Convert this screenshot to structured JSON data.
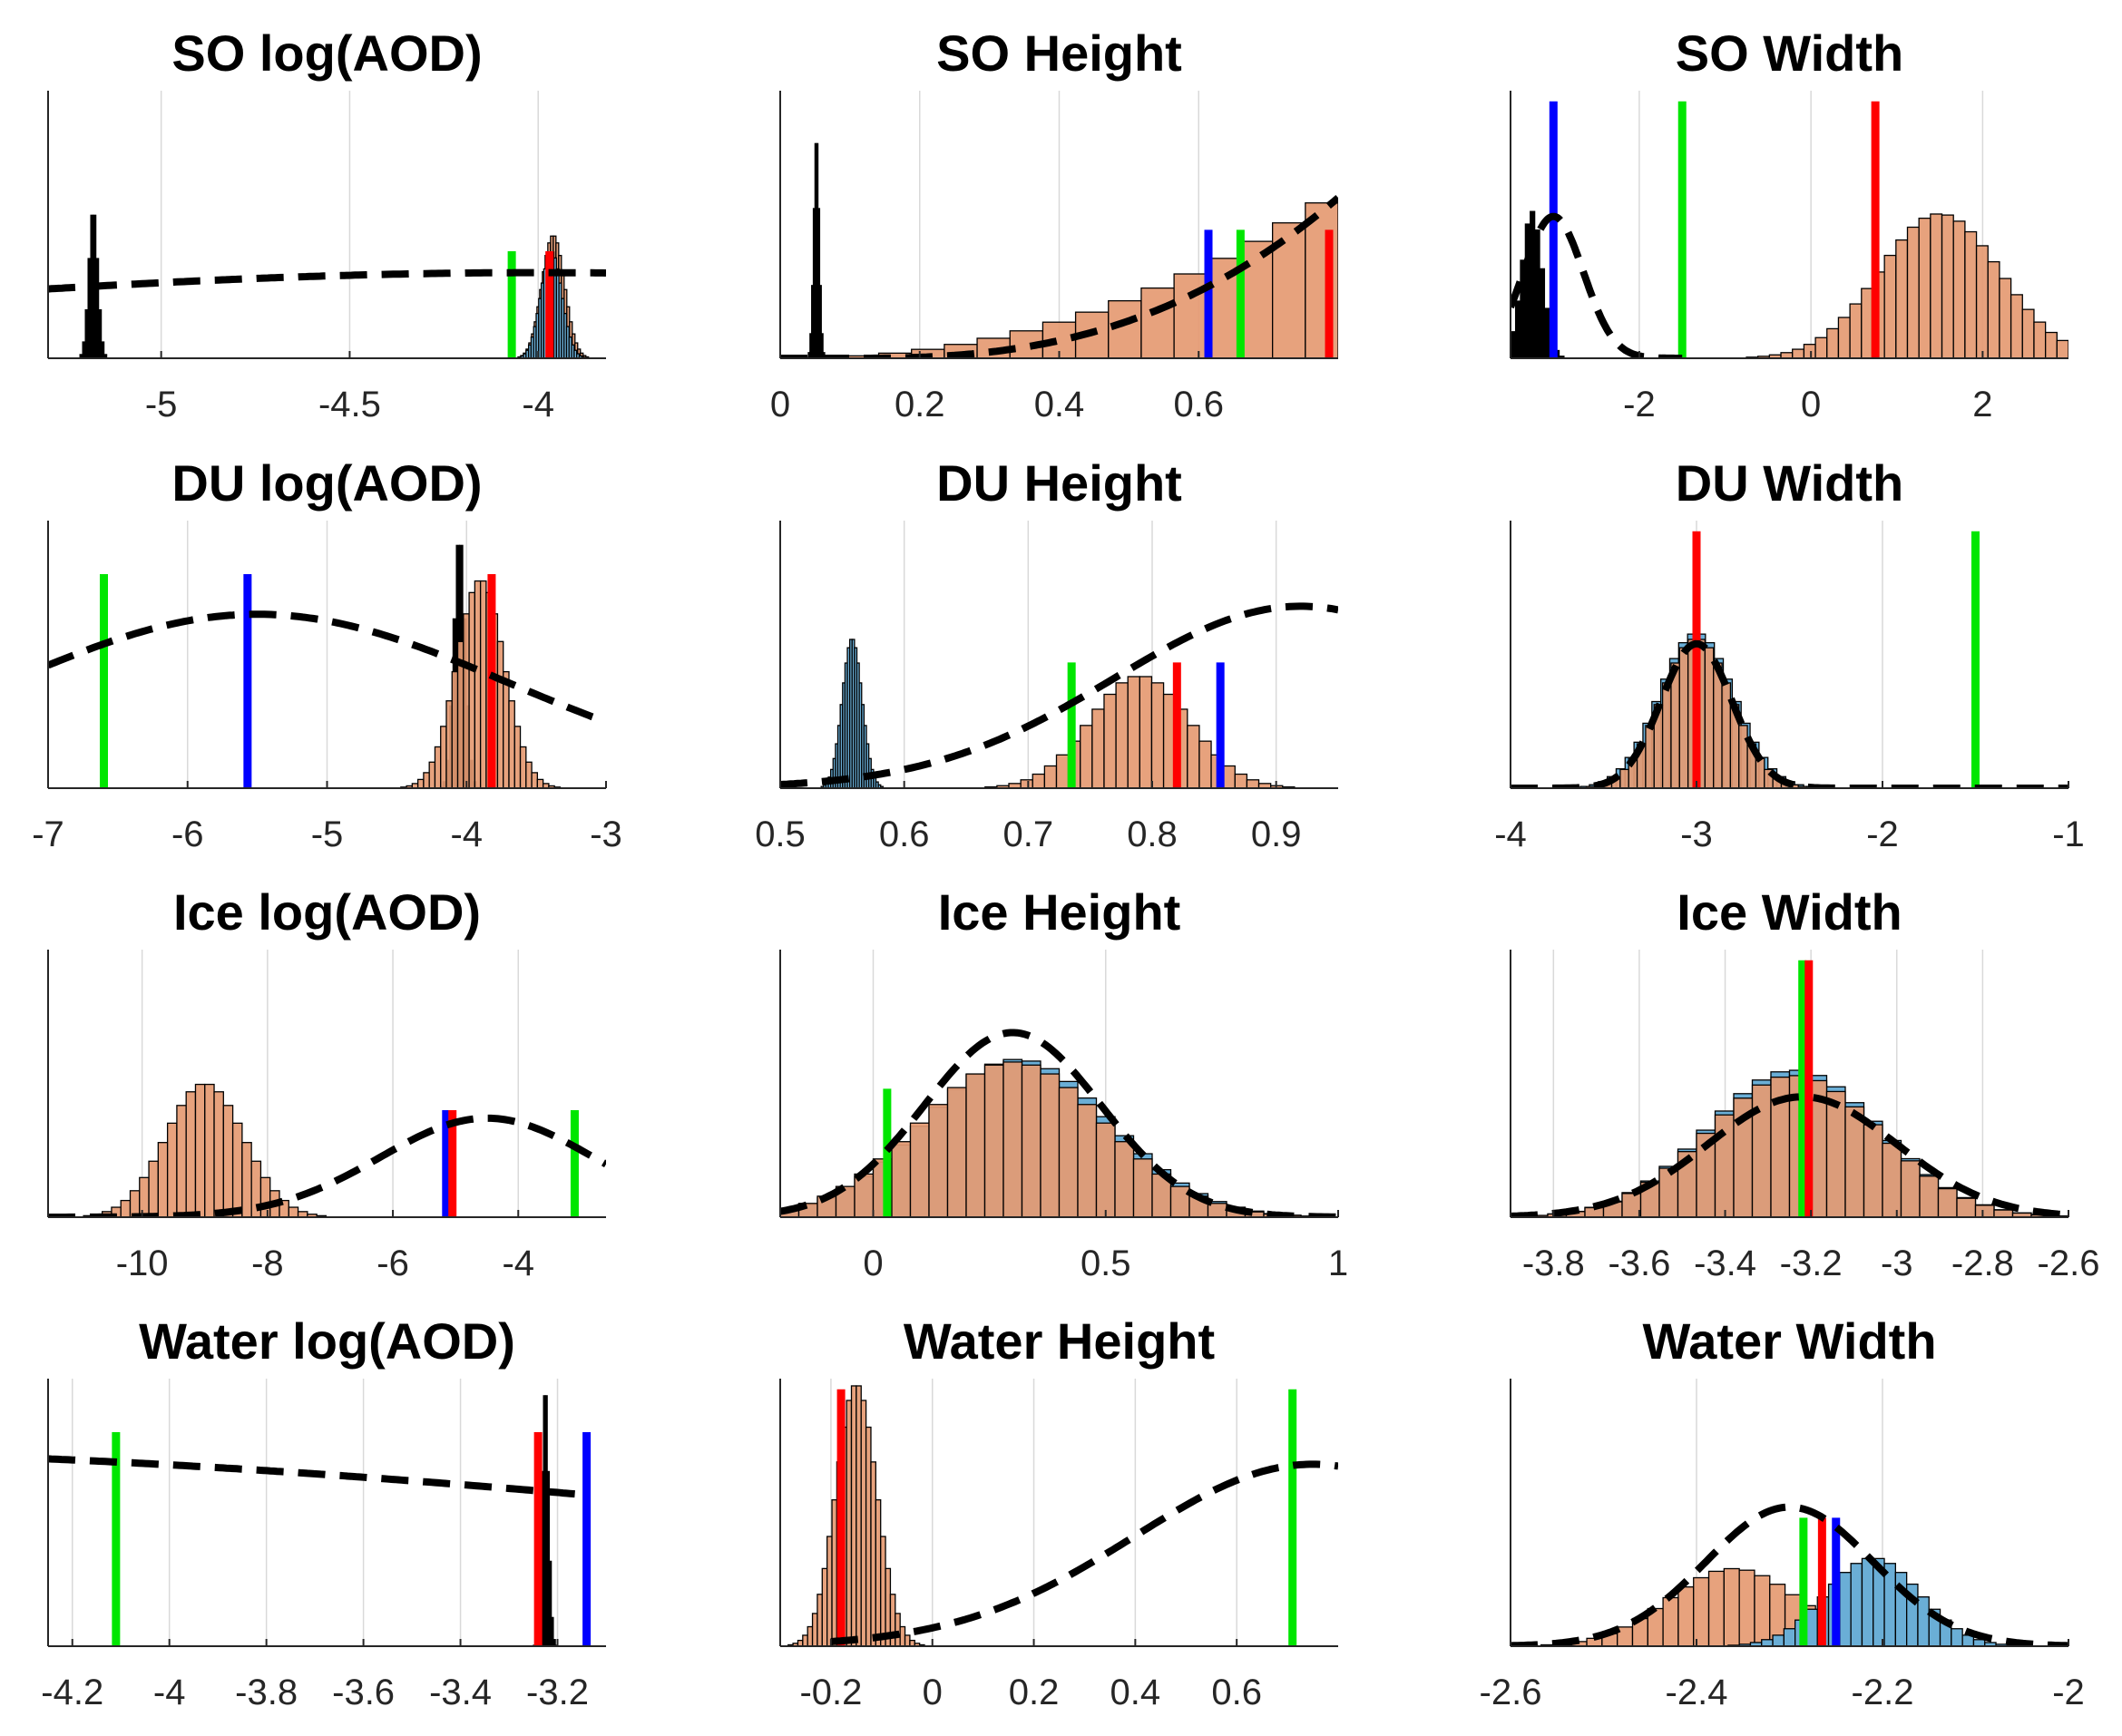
{
  "colors": {
    "hist_orange": "#e59a72",
    "hist_blue": "#6aaed6",
    "hist_edge": "#000000",
    "grid": "#d9d9d9",
    "axis": "#262626",
    "line_red": "#ff0000",
    "line_green": "#00e600",
    "line_blue": "#0000ff",
    "dashed": "#000000"
  },
  "chart_data": [
    {
      "type": "bar",
      "id": "so-logaod",
      "title": "SO log(AOD)",
      "xlim": [
        -5.3,
        -3.82
      ],
      "ylim": [
        0,
        1
      ],
      "xticks": [
        -5,
        -4.5,
        -4
      ],
      "xticklabels": [
        "-5",
        "-4.5",
        "-4"
      ],
      "histograms": [
        {
          "name": "spike",
          "color": "black",
          "center": -5.18,
          "sd": 0.012,
          "peak": 0.56
        },
        {
          "name": "orange",
          "color": "orange",
          "center": -3.96,
          "sd": 0.03,
          "peak": 0.46
        },
        {
          "name": "blue",
          "color": "blue",
          "center": -3.965,
          "sd": 0.028,
          "peak": 0.4
        }
      ],
      "vlines": [
        {
          "color": "green",
          "x": -4.07,
          "height": 0.4
        },
        {
          "color": "red",
          "x": -3.97,
          "height": 0.4
        }
      ],
      "dashed": {
        "type": "gauss",
        "mu": -4.0,
        "sd": 2.0,
        "peak": 0.32
      }
    },
    {
      "type": "bar",
      "id": "so-height",
      "title": "SO Height",
      "xlim": [
        0,
        0.8
      ],
      "ylim": [
        0,
        1
      ],
      "xticks": [
        0,
        0.2,
        0.4,
        0.6
      ],
      "xticklabels": [
        "0",
        "0.2",
        "0.4",
        "0.6"
      ],
      "histograms": [
        {
          "name": "spike",
          "color": "black",
          "center": 0.052,
          "sd": 0.004,
          "peak": 0.84
        },
        {
          "name": "orange",
          "color": "orange",
          "shape": "ramp",
          "from": 0.0,
          "to": 0.8,
          "peak": 0.62
        }
      ],
      "vlines": [
        {
          "color": "blue",
          "x": 0.614,
          "height": 0.48
        },
        {
          "color": "green",
          "x": 0.66,
          "height": 0.48
        },
        {
          "color": "red",
          "x": 0.787,
          "height": 0.48
        }
      ],
      "dashed": {
        "type": "ramp",
        "from": 0.1,
        "to": 0.8,
        "peak": 0.6
      }
    },
    {
      "type": "bar",
      "id": "so-width",
      "title": "SO Width",
      "xlim": [
        -3.5,
        3
      ],
      "ylim": [
        0,
        1
      ],
      "xticks": [
        -2,
        0,
        2
      ],
      "xticklabels": [
        "-2",
        "0",
        "2"
      ],
      "histograms": [
        {
          "name": "spike",
          "color": "black",
          "center": -3.25,
          "sd": 0.12,
          "peak": 0.55
        },
        {
          "name": "orange",
          "color": "orange",
          "center": 1.5,
          "sd": 0.7,
          "peak": 0.54
        }
      ],
      "vlines": [
        {
          "color": "blue",
          "x": -3.0,
          "height": 0.96
        },
        {
          "color": "green",
          "x": -1.5,
          "height": 0.96
        },
        {
          "color": "red",
          "x": 0.75,
          "height": 0.96
        }
      ],
      "dashed": {
        "type": "gauss",
        "mu": -3.0,
        "sd": 0.35,
        "peak": 0.53,
        "x_end": -1.5
      }
    },
    {
      "type": "bar",
      "id": "du-logaod",
      "title": "DU log(AOD)",
      "xlim": [
        -7,
        -3
      ],
      "ylim": [
        0,
        1
      ],
      "xticks": [
        -7,
        -6,
        -5,
        -4,
        -3
      ],
      "xticklabels": [
        "-7",
        "-6",
        "-5",
        "-4",
        "-3"
      ],
      "histograms": [
        {
          "name": "spike",
          "color": "black",
          "center": -4.05,
          "sd": 0.04,
          "peak": 0.95
        },
        {
          "name": "orange",
          "color": "orange",
          "center": -3.9,
          "sd": 0.17,
          "peak": 0.78
        }
      ],
      "vlines": [
        {
          "color": "green",
          "x": -6.6,
          "height": 0.8
        },
        {
          "color": "blue",
          "x": -5.57,
          "height": 0.8
        },
        {
          "color": "red",
          "x": -3.82,
          "height": 0.8
        }
      ],
      "dashed": {
        "type": "gauss",
        "mu": -5.5,
        "sd": 1.8,
        "peak": 0.65
      }
    },
    {
      "type": "bar",
      "id": "du-height",
      "title": "DU Height",
      "xlim": [
        0.5,
        0.95
      ],
      "ylim": [
        0,
        1
      ],
      "xticks": [
        0.5,
        0.6,
        0.7,
        0.8,
        0.9
      ],
      "xticklabels": [
        "0.5",
        "0.6",
        "0.7",
        "0.8",
        "0.9"
      ],
      "histograms": [
        {
          "name": "blue",
          "color": "blue",
          "center": 0.558,
          "sd": 0.008,
          "peak": 0.56
        },
        {
          "name": "orange",
          "color": "orange",
          "center": 0.79,
          "sd": 0.04,
          "peak": 0.42
        }
      ],
      "vlines": [
        {
          "color": "green",
          "x": 0.735,
          "height": 0.47
        },
        {
          "color": "red",
          "x": 0.82,
          "height": 0.47
        },
        {
          "color": "blue",
          "x": 0.855,
          "height": 0.47
        }
      ],
      "dashed": {
        "type": "gauss",
        "mu": 0.92,
        "sd": 0.15,
        "peak": 0.68
      }
    },
    {
      "type": "bar",
      "id": "du-width",
      "title": "DU Width",
      "xlim": [
        -4,
        -1
      ],
      "ylim": [
        0,
        1
      ],
      "xticks": [
        -4,
        -3,
        -2,
        -1
      ],
      "xticklabels": [
        "-4",
        "-3",
        "-2",
        "-1"
      ],
      "histograms": [
        {
          "name": "blue",
          "color": "blue",
          "center": -3.0,
          "sd": 0.2,
          "peak": 0.58
        },
        {
          "name": "orange",
          "color": "orange",
          "center": -3.0,
          "sd": 0.19,
          "peak": 0.56
        }
      ],
      "vlines": [
        {
          "color": "red",
          "x": -3.0,
          "height": 0.96
        },
        {
          "color": "green",
          "x": -1.5,
          "height": 0.96
        }
      ],
      "dashed": {
        "type": "gauss",
        "mu": -3.0,
        "sd": 0.19,
        "peak": 0.54
      }
    },
    {
      "type": "bar",
      "id": "ice-logaod",
      "title": "Ice log(AOD)",
      "xlim": [
        -11.5,
        -2.6
      ],
      "ylim": [
        0,
        1
      ],
      "xticks": [
        -10,
        -8,
        -6,
        -4
      ],
      "xticklabels": [
        "-10",
        "-8",
        "-6",
        "-4"
      ],
      "histograms": [
        {
          "name": "orange",
          "color": "orange",
          "center": -9.0,
          "sd": 0.62,
          "peak": 0.5
        }
      ],
      "vlines": [
        {
          "color": "blue",
          "x": -5.15,
          "height": 0.4
        },
        {
          "color": "red",
          "x": -5.05,
          "height": 0.4
        },
        {
          "color": "green",
          "x": -3.1,
          "height": 0.4
        }
      ],
      "dashed": {
        "type": "gauss",
        "mu": -4.5,
        "sd": 1.7,
        "peak": 0.37,
        "x_start": -11.5
      }
    },
    {
      "type": "bar",
      "id": "ice-height",
      "title": "Ice Height",
      "xlim": [
        -0.2,
        1
      ],
      "ylim": [
        0,
        1
      ],
      "xticks": [
        0,
        0.5,
        1
      ],
      "xticklabels": [
        "0",
        "0.5",
        "1"
      ],
      "histograms": [
        {
          "name": "blue",
          "color": "blue",
          "center": 0.31,
          "sd": 0.2,
          "peak": 0.59
        },
        {
          "name": "orange",
          "color": "orange",
          "center": 0.3,
          "sd": 0.2,
          "peak": 0.58
        }
      ],
      "vlines": [
        {
          "color": "green",
          "x": 0.03,
          "height": 0.48
        }
      ],
      "dashed": {
        "type": "gauss",
        "mu": 0.3,
        "sd": 0.19,
        "peak": 0.69
      }
    },
    {
      "type": "bar",
      "id": "ice-width",
      "title": "Ice Width",
      "xlim": [
        -3.9,
        -2.6
      ],
      "ylim": [
        0,
        1
      ],
      "xticks": [
        -3.8,
        -3.6,
        -3.4,
        -3.2,
        -3,
        -2.8,
        -2.6
      ],
      "xticklabels": [
        "-3.8",
        "-3.6",
        "-3.4",
        "-3.2",
        "-3",
        "-2.8",
        "-2.6"
      ],
      "histograms": [
        {
          "name": "blue",
          "color": "blue",
          "center": -3.24,
          "sd": 0.2,
          "peak": 0.55
        },
        {
          "name": "orange",
          "color": "orange",
          "center": -3.24,
          "sd": 0.2,
          "peak": 0.53
        }
      ],
      "vlines": [
        {
          "color": "green",
          "x": -3.22,
          "height": 0.96
        },
        {
          "color": "red",
          "x": -3.205,
          "height": 0.96
        }
      ],
      "dashed": {
        "type": "gauss",
        "mu": -3.22,
        "sd": 0.22,
        "peak": 0.45
      }
    },
    {
      "type": "bar",
      "id": "water-logaod",
      "title": "Water log(AOD)",
      "xlim": [
        -4.25,
        -3.1
      ],
      "ylim": [
        0,
        1
      ],
      "xticks": [
        -4.2,
        -4,
        -3.8,
        -3.6,
        -3.4,
        -3.2
      ],
      "xticklabels": [
        "-4.2",
        "-4",
        "-3.8",
        "-3.6",
        "-3.4",
        "-3.2"
      ],
      "histograms": [
        {
          "name": "spike",
          "color": "black",
          "center": -3.225,
          "sd": 0.007,
          "peak": 0.98
        }
      ],
      "vlines": [
        {
          "color": "green",
          "x": -4.11,
          "height": 0.8
        },
        {
          "color": "red",
          "x": -3.24,
          "height": 0.8
        },
        {
          "color": "blue",
          "x": -3.14,
          "height": 0.8
        }
      ],
      "dashed": {
        "type": "gauss",
        "mu": -5.0,
        "sd": 2.6,
        "peak": 0.73,
        "x_end": -3.14
      }
    },
    {
      "type": "bar",
      "id": "water-height",
      "title": "Water Height",
      "xlim": [
        -0.3,
        0.8
      ],
      "ylim": [
        0,
        1
      ],
      "xticks": [
        -0.2,
        0,
        0.2,
        0.4,
        0.6
      ],
      "xticklabels": [
        "-0.2",
        "0",
        "0.2",
        "0.4",
        "0.6"
      ],
      "histograms": [
        {
          "name": "orange",
          "color": "orange",
          "center": -0.15,
          "sd": 0.04,
          "peak": 0.98
        }
      ],
      "vlines": [
        {
          "color": "red",
          "x": -0.18,
          "height": 0.96
        },
        {
          "color": "green",
          "x": 0.71,
          "height": 0.96
        }
      ],
      "dashed": {
        "type": "gauss",
        "mu": 0.75,
        "sd": 0.35,
        "peak": 0.68,
        "x_start": -0.2
      }
    },
    {
      "type": "bar",
      "id": "water-width",
      "title": "Water Width",
      "xlim": [
        -2.6,
        -2
      ],
      "ylim": [
        0,
        1
      ],
      "xticks": [
        -2.6,
        -2.4,
        -2.2,
        -2
      ],
      "xticklabels": [
        "-2.6",
        "-2.4",
        "-2.2",
        "-2"
      ],
      "histograms": [
        {
          "name": "orange",
          "color": "orange",
          "center": -2.36,
          "sd": 0.07,
          "peak": 0.29
        },
        {
          "name": "blue",
          "color": "blue",
          "center": -2.21,
          "sd": 0.05,
          "peak": 0.33
        }
      ],
      "vlines": [
        {
          "color": "green",
          "x": -2.285,
          "height": 0.48
        },
        {
          "color": "red",
          "x": -2.265,
          "height": 0.48
        },
        {
          "color": "blue",
          "x": -2.25,
          "height": 0.48
        }
      ],
      "dashed": {
        "type": "gauss",
        "mu": -2.3,
        "sd": 0.09,
        "peak": 0.52
      }
    }
  ]
}
